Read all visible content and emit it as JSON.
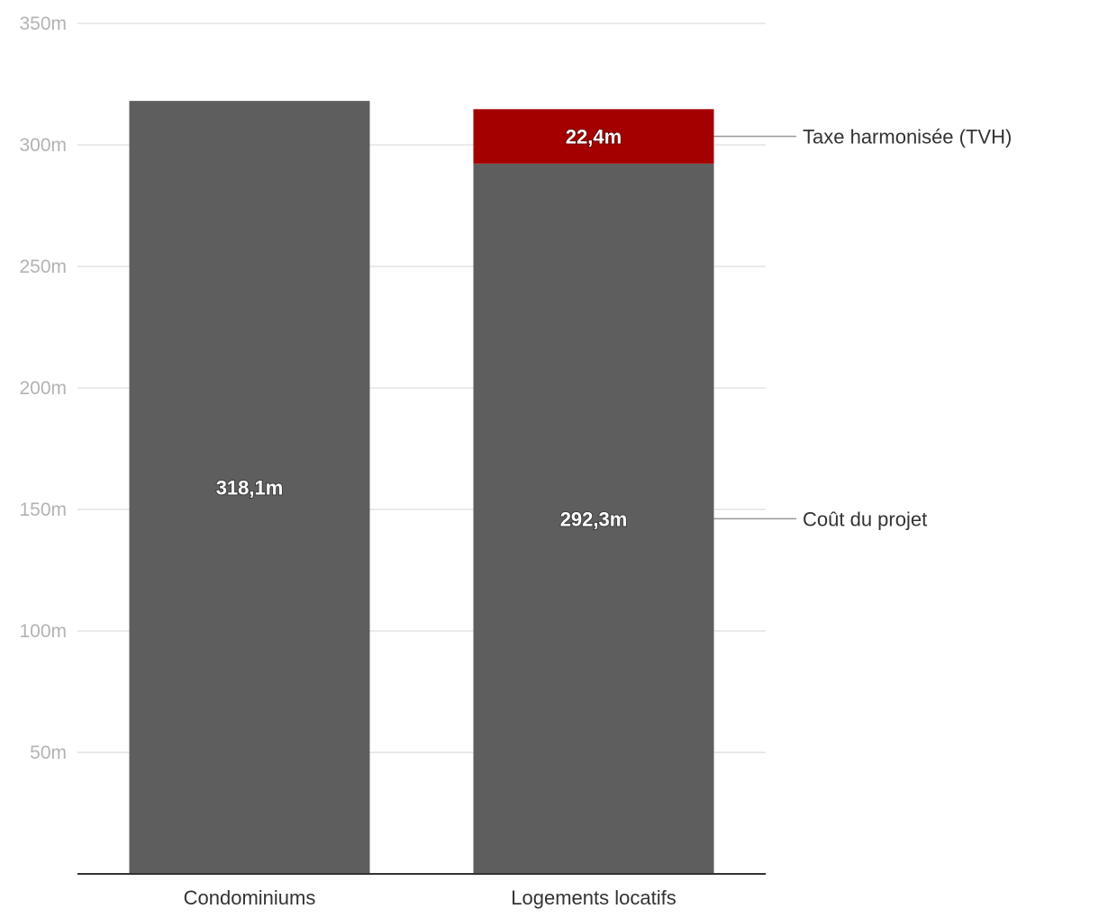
{
  "chart_data": {
    "type": "bar",
    "stacked": true,
    "categories": [
      "Condominiums",
      "Logements locatifs"
    ],
    "series": [
      {
        "name": "Coût du projet",
        "values": [
          318.1,
          292.3
        ],
        "labels": [
          "318,1m",
          "292,3m"
        ],
        "color": "#5e5e5e"
      },
      {
        "name": "Taxe harmonisée (TVH)",
        "values": [
          0,
          22.4
        ],
        "labels": [
          "",
          "22,4m"
        ],
        "color": "#a50000"
      }
    ],
    "y_ticks": [
      {
        "value": 50,
        "label": "50m"
      },
      {
        "value": 100,
        "label": "100m"
      },
      {
        "value": 150,
        "label": "150m"
      },
      {
        "value": 200,
        "label": "200m"
      },
      {
        "value": 250,
        "label": "250m"
      },
      {
        "value": 300,
        "label": "300m"
      },
      {
        "value": 350,
        "label": "350m"
      }
    ],
    "ylim": [
      0,
      350
    ],
    "grid": true,
    "annotations": [
      {
        "text": "Taxe harmonisée (TVH)",
        "series": 1,
        "category": 1
      },
      {
        "text": "Coût du projet",
        "series": 0,
        "category": 1
      }
    ],
    "title": "",
    "xlabel": "",
    "ylabel": ""
  }
}
